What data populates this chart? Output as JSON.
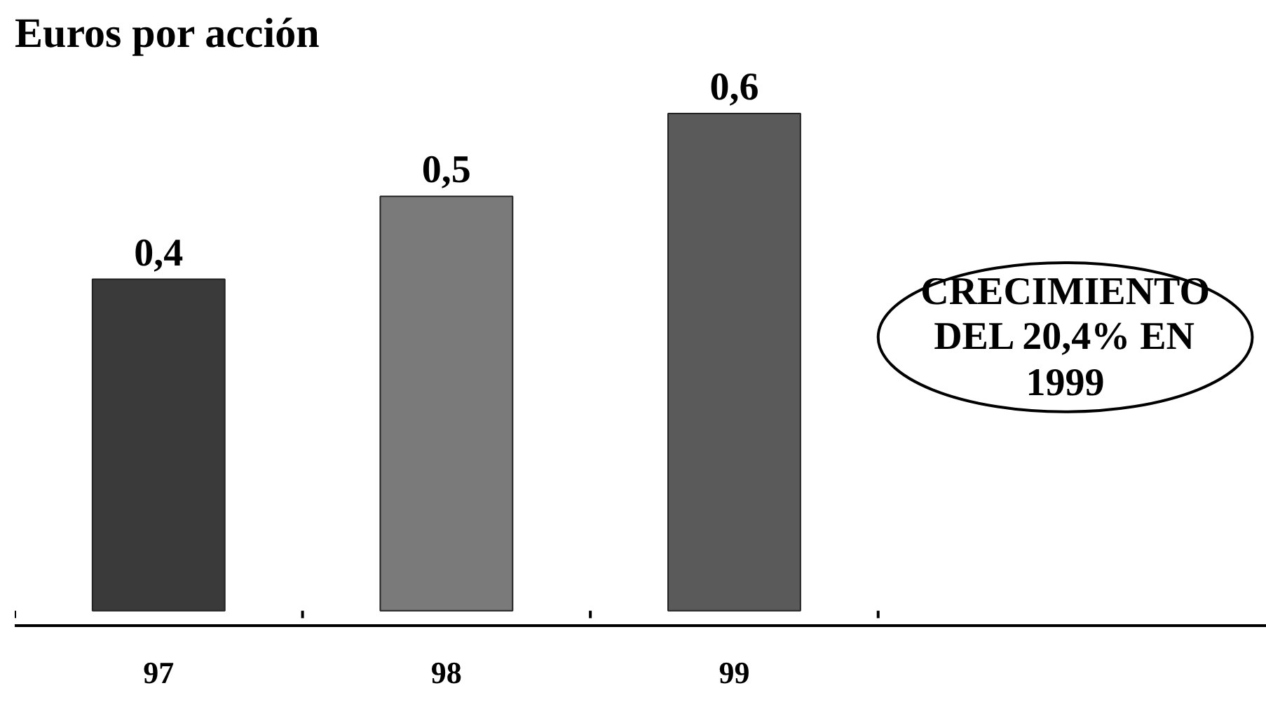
{
  "chart_data": {
    "type": "bar",
    "title": "Euros por acción",
    "categories": [
      "97",
      "98",
      "99"
    ],
    "values": [
      0.4,
      0.5,
      0.6
    ],
    "value_labels": [
      "0,4",
      "0,5",
      "0,6"
    ],
    "colors": [
      "#3a3a3a",
      "#7a7a7a",
      "#5a5a5a"
    ],
    "grid": false,
    "annotations": [
      "CRECIMIENTO\nDEL 20,4% EN\n1999"
    ]
  }
}
